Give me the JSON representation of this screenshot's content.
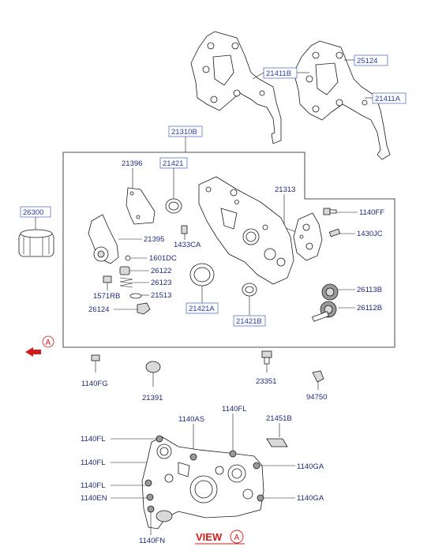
{
  "labels": {
    "p21411B": "21411B",
    "p25124": "25124",
    "p21411A": "21411A",
    "p21310B": "21310B",
    "p21396": "21396",
    "p21421": "21421",
    "p21313": "21313",
    "p26300": "26300",
    "p1140FF": "1140FF",
    "p21395": "21395",
    "p1430JC": "1430JC",
    "p1433CA": "1433CA",
    "p1601DC": "1601DC",
    "p26122": "26122",
    "p26123": "26123",
    "p1571RB": "1571RB",
    "p21513": "21513",
    "p26124": "26124",
    "p21421A": "21421A",
    "p21421B": "21421B",
    "p26113B": "26113B",
    "p26112B": "26112B",
    "p1140FG": "1140FG",
    "p21391": "21391",
    "p23351": "23351",
    "p94750": "94750",
    "p1140AS": "1140AS",
    "p1140FL_top": "1140FL",
    "p21451B": "21451B",
    "p1140FL_1": "1140FL",
    "p1140FL_2": "1140FL",
    "p1140FL_3": "1140FL",
    "p1140EN": "1140EN",
    "p1140GA_1": "1140GA",
    "p1140GA_2": "1140GA",
    "p1140FN": "1140FN"
  },
  "view_label": "VIEW",
  "view_marker": "A",
  "arrow_marker": "A",
  "colors": {
    "label": "#1f2a7a",
    "box_border": "#5a74c4",
    "accent": "#d11c1c"
  }
}
